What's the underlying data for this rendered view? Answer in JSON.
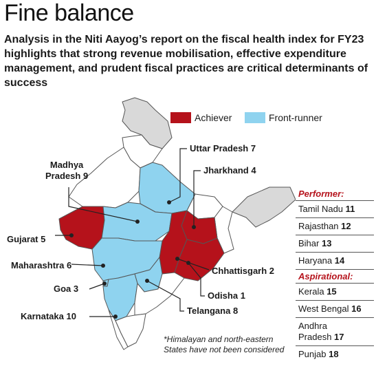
{
  "header": {
    "title": "Fine balance",
    "subtitle": "Analysis in the Niti Aayog’s report on the fiscal health index for FY23 highlights that strong revenue mobilisation, effective expenditure management, and prudent fiscal practices are critical determinants of success"
  },
  "legend": {
    "achiever": "Achiever",
    "front_runner": "Front-runner"
  },
  "colors": {
    "achiever": "#b5121b",
    "front_runner": "#8fd3ef",
    "other": "#ffffff",
    "unconsidered": "#d9d9d9",
    "border": "#555555"
  },
  "map_labels": {
    "uttar_pradesh": {
      "name": "Uttar Pradesh",
      "rank": "7"
    },
    "jharkhand": {
      "name": "Jharkhand",
      "rank": "4"
    },
    "madhya_pradesh": {
      "name1": "Madhya",
      "name2": "Pradesh",
      "rank": "9"
    },
    "gujarat": {
      "name": "Gujarat",
      "rank": "5"
    },
    "maharashtra": {
      "name": "Maharashtra",
      "rank": "6"
    },
    "chhattisgarh": {
      "name": "Chhattisgarh",
      "rank": "2"
    },
    "goa": {
      "name": "Goa",
      "rank": "3"
    },
    "odisha": {
      "name": "Odisha",
      "rank": "1"
    },
    "karnataka": {
      "name": "Karnataka",
      "rank": "10"
    },
    "telangana": {
      "name": "Telangana",
      "rank": "8"
    }
  },
  "panel": {
    "performer_heading": "Performer:",
    "performers": [
      {
        "name": "Tamil Nadu",
        "rank": "11"
      },
      {
        "name": "Rajasthan",
        "rank": "12"
      },
      {
        "name": "Bihar",
        "rank": "13"
      },
      {
        "name": "Haryana",
        "rank": "14"
      }
    ],
    "aspirational_heading": "Aspirational:",
    "aspirationals": [
      {
        "name": "Kerala",
        "rank": "15"
      },
      {
        "name": "West Bengal",
        "rank": "16"
      },
      {
        "name": "Andhra Pradesh",
        "name1": "Andhra",
        "name2": "Pradesh",
        "rank": "17"
      },
      {
        "name": "Punjab",
        "rank": "18"
      }
    ]
  },
  "note": "*Himalayan and north-eastern States have not been considered"
}
